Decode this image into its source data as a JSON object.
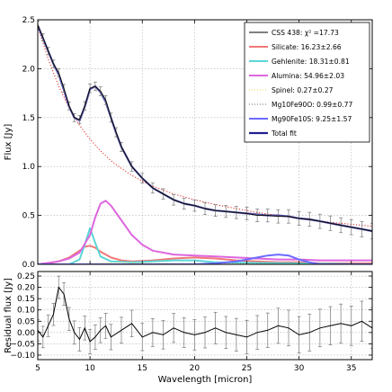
{
  "chart_data": [
    {
      "type": "line",
      "xlabel": "",
      "ylabel": "Flux [Jy]",
      "xlim": [
        5,
        37
      ],
      "ylim": [
        0,
        2.5
      ],
      "xticks": [
        5,
        10,
        15,
        20,
        25,
        30,
        35
      ],
      "yticks": [
        "0.0",
        "0.5",
        "1.0",
        "1.5",
        "2.0",
        "2.5"
      ],
      "grid": true,
      "legend_position": "top-right",
      "colors": {
        "data": "#000000",
        "silicate": "#f07878",
        "gehlenite": "#5cd6d6",
        "alumina": "#dd66dd",
        "spinel": "#e8e070",
        "mg10fe90o": "#888888",
        "mg90fe10s": "#6b6bff",
        "total": "#202090",
        "continuum": "#dd2222"
      },
      "series": [
        {
          "key": "data",
          "name": "CSS 438: χ² =17.73",
          "style": "line-errorbars",
          "x": [
            5,
            5.5,
            6,
            6.5,
            7,
            7.5,
            8,
            8.5,
            9,
            9.5,
            10,
            10.5,
            11,
            11.5,
            12,
            12.5,
            13,
            14,
            15,
            16,
            17,
            18,
            19,
            20,
            21,
            22,
            23,
            24,
            25,
            26,
            27,
            28,
            29,
            30,
            31,
            32,
            33,
            34,
            35,
            36,
            37
          ],
          "y": [
            2.45,
            2.32,
            2.18,
            2.05,
            1.96,
            1.8,
            1.62,
            1.5,
            1.48,
            1.62,
            1.8,
            1.82,
            1.77,
            1.68,
            1.5,
            1.35,
            1.2,
            1.0,
            0.88,
            0.78,
            0.72,
            0.66,
            0.62,
            0.6,
            0.57,
            0.55,
            0.54,
            0.53,
            0.52,
            0.5,
            0.5,
            0.49,
            0.49,
            0.47,
            0.46,
            0.44,
            0.42,
            0.4,
            0.38,
            0.36,
            0.34
          ]
        },
        {
          "key": "silicate",
          "name": "Silicate: 16.23±2.66",
          "x": [
            5,
            6,
            7,
            8,
            9,
            9.5,
            10,
            10.5,
            11,
            12,
            13,
            14,
            16,
            18,
            20,
            22,
            24,
            26,
            28,
            30,
            32,
            34,
            37
          ],
          "y": [
            0.0,
            0.01,
            0.03,
            0.07,
            0.14,
            0.18,
            0.19,
            0.17,
            0.13,
            0.07,
            0.04,
            0.03,
            0.04,
            0.06,
            0.07,
            0.06,
            0.04,
            0.03,
            0.02,
            0.02,
            0.01,
            0.01,
            0.01
          ]
        },
        {
          "key": "gehlenite",
          "name": "Gehlenite: 18.31±0.81",
          "x": [
            5,
            8,
            9,
            9.5,
            10,
            10.5,
            11,
            12,
            14,
            16,
            18,
            20,
            22,
            37
          ],
          "y": [
            0.0,
            0.0,
            0.05,
            0.2,
            0.37,
            0.22,
            0.08,
            0.03,
            0.02,
            0.03,
            0.04,
            0.04,
            0.02,
            0.0
          ]
        },
        {
          "key": "alumina",
          "name": "Alumina: 54.96±2.03",
          "x": [
            5,
            7,
            8,
            9,
            10,
            10.5,
            11,
            11.5,
            12,
            13,
            14,
            15,
            16,
            18,
            20,
            22,
            24,
            26,
            28,
            30,
            32,
            35,
            37
          ],
          "y": [
            0.0,
            0.03,
            0.06,
            0.12,
            0.3,
            0.48,
            0.62,
            0.65,
            0.6,
            0.45,
            0.3,
            0.2,
            0.14,
            0.1,
            0.09,
            0.08,
            0.07,
            0.06,
            0.05,
            0.05,
            0.04,
            0.04,
            0.04
          ]
        },
        {
          "key": "spinel",
          "name": "Spinel: 0.27±0.27",
          "style": "dotted",
          "x": [
            5,
            10,
            13,
            15,
            20,
            25,
            30,
            37
          ],
          "y": [
            0.0,
            0.005,
            0.02,
            0.01,
            0.005,
            0.005,
            0.0,
            0.0
          ]
        },
        {
          "key": "mg10fe90o",
          "name": "Mg10Fe90O: 0.99±0.77",
          "style": "dotted",
          "x": [
            5,
            10,
            15,
            20,
            25,
            30,
            37
          ],
          "y": [
            0.0,
            0.0,
            0.005,
            0.005,
            0.005,
            0.0,
            0.0
          ]
        },
        {
          "key": "mg90fe10s",
          "name": "Mg90Fe10S: 9.25±1.57",
          "x": [
            5,
            20,
            22,
            24,
            25,
            26,
            27,
            28,
            29,
            30,
            31,
            32,
            37
          ],
          "y": [
            0.0,
            0.0,
            0.01,
            0.03,
            0.05,
            0.07,
            0.09,
            0.1,
            0.09,
            0.05,
            0.02,
            0.0,
            0.0
          ]
        },
        {
          "key": "total",
          "name": "Total fit",
          "x": [
            5,
            5.5,
            6,
            6.5,
            7,
            7.5,
            8,
            8.5,
            9,
            9.5,
            10,
            10.5,
            11,
            11.5,
            12,
            12.5,
            13,
            14,
            15,
            16,
            17,
            18,
            19,
            20,
            21,
            22,
            23,
            24,
            25,
            26,
            27,
            28,
            29,
            30,
            31,
            32,
            33,
            34,
            35,
            36,
            37
          ],
          "y": [
            2.44,
            2.31,
            2.18,
            2.05,
            1.94,
            1.78,
            1.61,
            1.5,
            1.47,
            1.61,
            1.79,
            1.82,
            1.76,
            1.66,
            1.5,
            1.34,
            1.2,
            1.0,
            0.88,
            0.78,
            0.72,
            0.66,
            0.62,
            0.6,
            0.57,
            0.55,
            0.54,
            0.53,
            0.52,
            0.51,
            0.5,
            0.5,
            0.49,
            0.47,
            0.46,
            0.44,
            0.42,
            0.4,
            0.38,
            0.36,
            0.34
          ]
        },
        {
          "key": "continuum",
          "style": "dotted",
          "x": [
            5,
            6,
            7,
            8,
            9,
            10,
            11,
            12,
            13,
            14,
            15,
            16,
            18,
            20,
            22,
            24,
            26,
            28,
            30,
            32,
            34,
            37
          ],
          "y": [
            2.43,
            2.1,
            1.82,
            1.6,
            1.42,
            1.28,
            1.16,
            1.06,
            0.98,
            0.91,
            0.85,
            0.8,
            0.72,
            0.66,
            0.61,
            0.57,
            0.53,
            0.5,
            0.47,
            0.44,
            0.42,
            0.39
          ]
        }
      ]
    },
    {
      "type": "line",
      "xlabel": "Wavelength [micron]",
      "ylabel": "Residual flux [Jy]",
      "xlim": [
        5,
        37
      ],
      "ylim": [
        -0.12,
        0.27
      ],
      "xticks": [
        5,
        10,
        15,
        20,
        25,
        30,
        35
      ],
      "yticks": [
        "−0.10",
        "−0.05",
        "0.00",
        "0.05",
        "0.10",
        "0.15",
        "0.20",
        "0.25"
      ],
      "grid": true,
      "series": [
        {
          "key": "residual",
          "style": "line-errorbars",
          "x": [
            5,
            5.5,
            6,
            6.5,
            7,
            7.5,
            8,
            8.5,
            9,
            9.5,
            10,
            10.5,
            11,
            11.5,
            12,
            13,
            14,
            15,
            16,
            17,
            18,
            19,
            20,
            21,
            22,
            23,
            24,
            25,
            26,
            27,
            28,
            29,
            30,
            31,
            32,
            33,
            34,
            35,
            36,
            37
          ],
          "y": [
            0.01,
            -0.02,
            0.03,
            0.08,
            0.2,
            0.17,
            0.06,
            0.0,
            -0.03,
            0.02,
            -0.04,
            -0.02,
            0.01,
            0.03,
            -0.02,
            0.01,
            0.04,
            -0.02,
            0.0,
            -0.01,
            0.02,
            0.0,
            -0.01,
            0.0,
            0.02,
            0.0,
            -0.01,
            -0.02,
            0.0,
            0.01,
            0.03,
            0.02,
            -0.01,
            0.0,
            0.02,
            0.03,
            0.04,
            0.03,
            0.05,
            0.02
          ]
        }
      ]
    }
  ]
}
